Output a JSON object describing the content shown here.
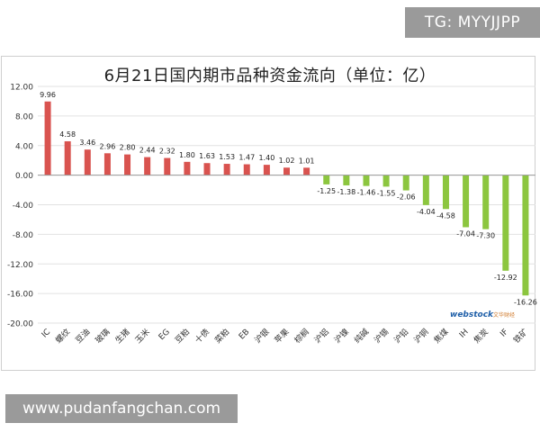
{
  "header": {
    "badge": "TG: MYYJJPP"
  },
  "footer": {
    "website": "www.pudanfangchan.com"
  },
  "watermark": {
    "text": "webstock 文华财经"
  },
  "colors": {
    "positive": "#d9534f",
    "negative": "#8cc63f",
    "grid": "#e2e2e2",
    "axis": "#999999"
  },
  "chart_data": {
    "type": "bar",
    "title": "6月21日国内期市品种资金流向（单位：亿）",
    "ylim": [
      -20,
      12
    ],
    "y_ticks": [
      "12.00",
      "8.00",
      "4.00",
      "0.00",
      "-4.00",
      "-8.00",
      "-12.00",
      "-16.00",
      "-20.00"
    ],
    "y_tick_values": [
      12,
      8,
      4,
      0,
      -4,
      -8,
      -12,
      -16,
      -20
    ],
    "grid": true,
    "legend": "none",
    "categories": [
      "IC",
      "螺纹",
      "豆油",
      "玻璃",
      "生猪",
      "玉米",
      "EG",
      "豆粕",
      "十债",
      "菜粕",
      "EB",
      "沪银",
      "苹果",
      "棕榈",
      "沪铝",
      "沪镍",
      "纯碱",
      "沪锡",
      "沪铅",
      "沪铜",
      "焦煤",
      "IH",
      "焦炭",
      "IF",
      "铁矿"
    ],
    "values": [
      9.96,
      4.58,
      3.46,
      2.96,
      2.8,
      2.44,
      2.32,
      1.8,
      1.63,
      1.53,
      1.47,
      1.4,
      1.02,
      1.01,
      -1.25,
      -1.38,
      -1.46,
      -1.55,
      -2.06,
      -4.04,
      -4.58,
      -7.04,
      -7.3,
      -12.92,
      -16.26
    ],
    "labels": [
      "9.96",
      "4.58",
      "3.46",
      "2.96",
      "2.80",
      "2.44",
      "2.32",
      "1.80",
      "1.63",
      "1.53",
      "1.47",
      "1.40",
      "1.02",
      "1.01",
      "-1.25",
      "-1.38",
      "-1.46",
      "-1.55",
      "-2.06",
      "-4.04",
      "-4.58",
      "-7.04",
      "-7.30",
      "-12.92",
      "-16.26"
    ]
  }
}
